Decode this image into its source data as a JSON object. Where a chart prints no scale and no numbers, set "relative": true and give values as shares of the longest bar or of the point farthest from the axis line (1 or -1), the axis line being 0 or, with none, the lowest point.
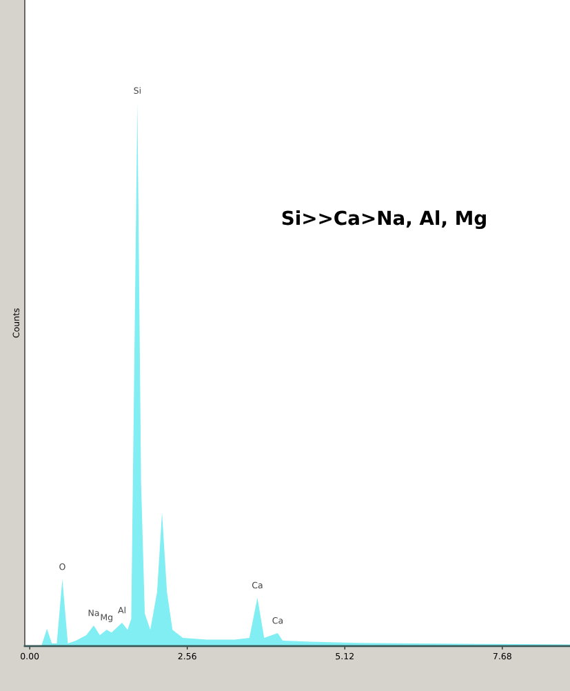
{
  "chart_data": {
    "type": "area",
    "relative": true,
    "ylabel": "Counts",
    "x": [
      -0.08,
      0.19,
      0.28,
      0.36,
      0.44,
      0.53,
      0.62,
      0.75,
      0.92,
      1.04,
      1.14,
      1.25,
      1.33,
      1.5,
      1.59,
      1.65,
      1.75,
      1.81,
      1.87,
      1.96,
      2.07,
      2.15,
      2.23,
      2.32,
      2.49,
      2.88,
      3.33,
      3.57,
      3.7,
      3.81,
      4.03,
      4.11,
      4.56,
      5.34,
      6.24,
      7.36,
      8.78
    ],
    "series": [
      {
        "color": "#80eef2",
        "values": [
          0,
          0,
          0.032,
          0.005,
          0.005,
          0.123,
          0.005,
          0.01,
          0.02,
          0.038,
          0.02,
          0.03,
          0.025,
          0.043,
          0.03,
          0.05,
          1.0,
          0.3,
          0.06,
          0.03,
          0.1,
          0.246,
          0.1,
          0.03,
          0.015,
          0.012,
          0.012,
          0.015,
          0.089,
          0.015,
          0.024,
          0.01,
          0.008,
          0.006,
          0.005,
          0.004,
          0.003
        ]
      }
    ],
    "xlim": [
      -0.08,
      8.78
    ],
    "xticks": [
      {
        "value": 0,
        "label": "0.00"
      },
      2.56,
      5.12,
      7.68
    ],
    "annotations": [
      {
        "text": "Si",
        "x": 1.75,
        "y": 1.0
      },
      {
        "text": "O",
        "x": 0.53,
        "y": 0.123
      },
      {
        "text": "Na",
        "x": 1.04,
        "y": 0.038
      },
      {
        "text": "Mg",
        "x": 1.25,
        "y": 0.03
      },
      {
        "text": "Al",
        "x": 1.5,
        "y": 0.043
      },
      {
        "text": "Ca",
        "x": 3.7,
        "y": 0.089
      },
      {
        "text": "Ca",
        "x": 4.03,
        "y": 0.024
      },
      "Si>>Ca>Na, Al, Mg"
    ]
  }
}
